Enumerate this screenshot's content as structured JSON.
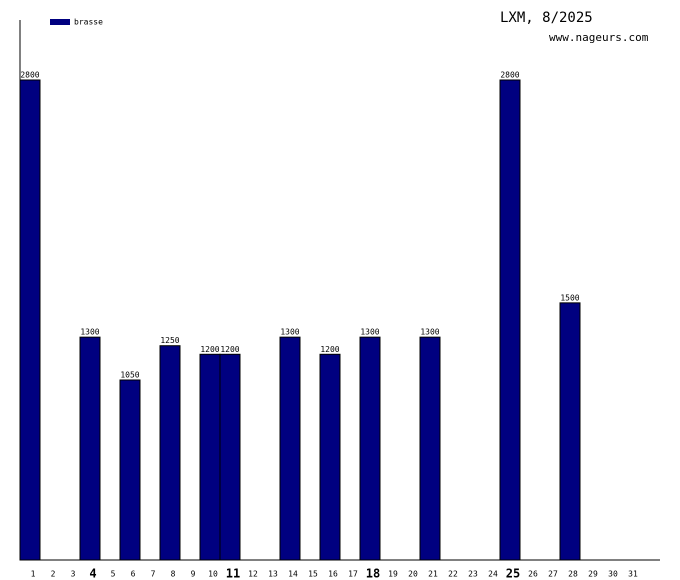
{
  "chart_data": {
    "type": "bar",
    "title": "LXM, 8/2025",
    "subtitle": "www.nageurs.com",
    "categories": [
      "1",
      "2",
      "3",
      "4",
      "5",
      "6",
      "7",
      "8",
      "9",
      "10",
      "11",
      "12",
      "13",
      "14",
      "15",
      "16",
      "17",
      "18",
      "19",
      "20",
      "21",
      "22",
      "23",
      "24",
      "25",
      "26",
      "27",
      "28",
      "29",
      "30",
      "31"
    ],
    "series": [
      {
        "name": "brasse",
        "color": "#000080",
        "values": [
          2800,
          null,
          null,
          1300,
          null,
          1050,
          null,
          1250,
          null,
          1200,
          1200,
          null,
          null,
          1300,
          null,
          1200,
          null,
          1300,
          null,
          null,
          1300,
          null,
          null,
          null,
          2800,
          null,
          null,
          1500,
          null,
          null,
          null
        ]
      }
    ],
    "ylim": [
      0,
      3150
    ]
  }
}
